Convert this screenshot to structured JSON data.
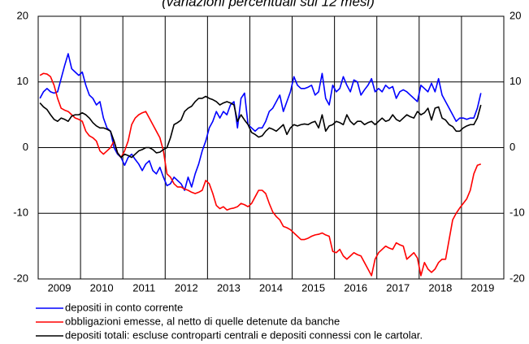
{
  "chart_data": {
    "type": "line",
    "title": "(variazioni percentuali sui 12 mesi)",
    "categories": [
      null,
      null,
      null,
      null,
      null,
      null,
      "2009",
      null,
      null,
      null,
      null,
      null,
      null,
      null,
      null,
      null,
      null,
      null,
      "2010",
      null,
      null,
      null,
      null,
      null,
      null,
      null,
      null,
      null,
      null,
      null,
      "2011",
      null,
      null,
      null,
      null,
      null,
      null,
      null,
      null,
      null,
      null,
      null,
      "2012",
      null,
      null,
      null,
      null,
      null,
      null,
      null,
      null,
      null,
      null,
      null,
      "2013",
      null,
      null,
      null,
      null,
      null,
      null,
      null,
      null,
      null,
      null,
      null,
      "2014",
      null,
      null,
      null,
      null,
      null,
      null,
      null,
      null,
      null,
      null,
      null,
      "2015",
      null,
      null,
      null,
      null,
      null,
      null,
      null,
      null,
      null,
      null,
      null,
      "2016",
      null,
      null,
      null,
      null,
      null,
      null,
      null,
      null,
      null,
      null,
      null,
      "2017",
      null,
      null,
      null,
      null,
      null,
      null,
      null,
      null,
      null,
      null,
      null,
      "2018",
      null,
      null,
      null,
      null,
      null,
      null,
      null,
      null,
      null,
      null,
      null,
      "2019",
      null,
      null,
      null,
      null,
      null
    ],
    "series": [
      {
        "name": "depositi in conto corrente",
        "color": "#0000ff",
        "values": [
          7.5,
          8.5,
          9,
          8.5,
          8.3,
          8.5,
          10.5,
          12.5,
          14.3,
          12,
          11.5,
          11,
          11.5,
          9.5,
          8,
          7.5,
          6.5,
          7,
          4.5,
          3,
          2.5,
          0,
          -1,
          -1.5,
          -2.7,
          -1.5,
          -1,
          -1.8,
          -2.5,
          -3.5,
          -2.5,
          -2,
          -3.5,
          -4,
          -3,
          -4.5,
          -5.8,
          -5.5,
          -4.5,
          -5,
          -5.5,
          -6.5,
          -4.5,
          -6,
          -4,
          -2.5,
          -0.5,
          1,
          3,
          4,
          5.5,
          4.5,
          5.5,
          5,
          6.5,
          7,
          3,
          7.5,
          8.3,
          3.5,
          3,
          2.5,
          3,
          3,
          4,
          5.5,
          6,
          7,
          8,
          5.5,
          7,
          8.5,
          10.8,
          9.5,
          9,
          9,
          9.2,
          9.5,
          8,
          8.5,
          11.3,
          7.5,
          6.5,
          9.5,
          8.5,
          9,
          10.8,
          9.5,
          8.5,
          10.3,
          10,
          8,
          8.8,
          9.5,
          10.5,
          8.5,
          9,
          8.5,
          9.5,
          9,
          9.3,
          7.5,
          8.5,
          8.8,
          8.5,
          8,
          7.5,
          7,
          9.5,
          9,
          8.5,
          9.8,
          8.5,
          10.5,
          8,
          7,
          6,
          5,
          4,
          4.5,
          4.5,
          4.3,
          4.5,
          4.5,
          6,
          8.3,
          null,
          null,
          null,
          null,
          null,
          null
        ]
      },
      {
        "name": "obbligazioni emesse, al netto di quelle detenute da banche",
        "color": "#ff0000",
        "values": [
          11,
          11.3,
          11.2,
          10.8,
          9.5,
          7.5,
          6,
          5.7,
          5.5,
          5,
          4.5,
          4.3,
          4,
          2.5,
          1.8,
          1.5,
          1,
          -0.5,
          -1,
          -0.5,
          0,
          1,
          -0.8,
          -1.5,
          -0.5,
          1,
          3.5,
          4.5,
          5,
          5.3,
          5.5,
          4.5,
          3.5,
          2.5,
          1.5,
          -0.5,
          -4,
          -4.5,
          -5.5,
          -6,
          -6,
          -6.3,
          -6.5,
          -6.8,
          -7,
          -6.8,
          -6.5,
          -5,
          -5.5,
          -7,
          -8.8,
          -9.3,
          -9,
          -9.5,
          -9.3,
          -9.2,
          -9,
          -8.5,
          -8.7,
          -9,
          -8.5,
          -7.5,
          -6.5,
          -6.5,
          -7,
          -8.5,
          -9.8,
          -10.5,
          -11,
          -12,
          -12.2,
          -12.5,
          -13,
          -13.5,
          -14,
          -14,
          -13.8,
          -13.5,
          -13.3,
          -13.2,
          -13,
          -13.3,
          -13.5,
          -15.8,
          -16,
          -15.5,
          -16.5,
          -17,
          -16.5,
          -16,
          -16.3,
          -16.5,
          -17.5,
          -18.5,
          -19.5,
          -17,
          -16,
          -15.5,
          -15,
          -15.3,
          -15.5,
          -14.5,
          -14.8,
          -15,
          -17,
          -16.5,
          -16,
          -16.8,
          -19.5,
          -17.5,
          -18.5,
          -19,
          -18.5,
          -17.5,
          -17,
          -17,
          -14,
          -11,
          -10,
          -9.2,
          -8.5,
          -7.8,
          -6.5,
          -4,
          -2.7,
          -2.5,
          null,
          null,
          null,
          null,
          null,
          null
        ]
      },
      {
        "name": "depositi totali: escluse controparti centrali e depositi connessi con le cartolar.",
        "color": "#000000",
        "values": [
          6.8,
          6.2,
          5.8,
          5,
          4.3,
          4,
          4.5,
          4.3,
          4,
          4.8,
          5,
          5,
          5.3,
          5,
          4.5,
          3.8,
          3.3,
          3,
          3,
          2.8,
          2.5,
          1,
          -0.8,
          -1.5,
          -1,
          -1.2,
          -1.5,
          -1,
          -0.5,
          -0.3,
          0,
          0,
          -0.3,
          -0.8,
          -0.7,
          -0.3,
          0,
          1.5,
          3.5,
          3.8,
          4.2,
          5.5,
          6,
          6.3,
          7,
          7.5,
          7.5,
          7.8,
          7.5,
          7.3,
          7,
          6.5,
          6.8,
          7,
          6.8,
          6.5,
          4,
          5,
          4.2,
          3.5,
          2.3,
          2,
          1.6,
          1.8,
          2.5,
          3,
          2.8,
          2.5,
          3,
          3.5,
          2,
          3,
          3.5,
          3.3,
          3.5,
          3.6,
          3.5,
          3.8,
          4,
          3,
          5,
          2.5,
          3.3,
          3.5,
          4,
          3.8,
          3.5,
          5,
          4,
          3.5,
          4,
          4,
          3.5,
          3.8,
          4,
          3.5,
          4,
          4.5,
          4,
          4.2,
          5,
          4.3,
          4,
          4.5,
          5,
          4.7,
          4.5,
          5.5,
          5,
          5.3,
          6,
          4.2,
          6,
          6.2,
          4.5,
          4.2,
          3.5,
          3.2,
          2.5,
          2.5,
          3,
          3.3,
          3.5,
          3.5,
          4.5,
          6.5,
          null,
          null,
          null,
          null,
          null,
          null
        ]
      }
    ],
    "ylim": [
      -20,
      20
    ],
    "yticks": [
      -20,
      -10,
      0,
      10,
      20
    ],
    "grid": true
  }
}
